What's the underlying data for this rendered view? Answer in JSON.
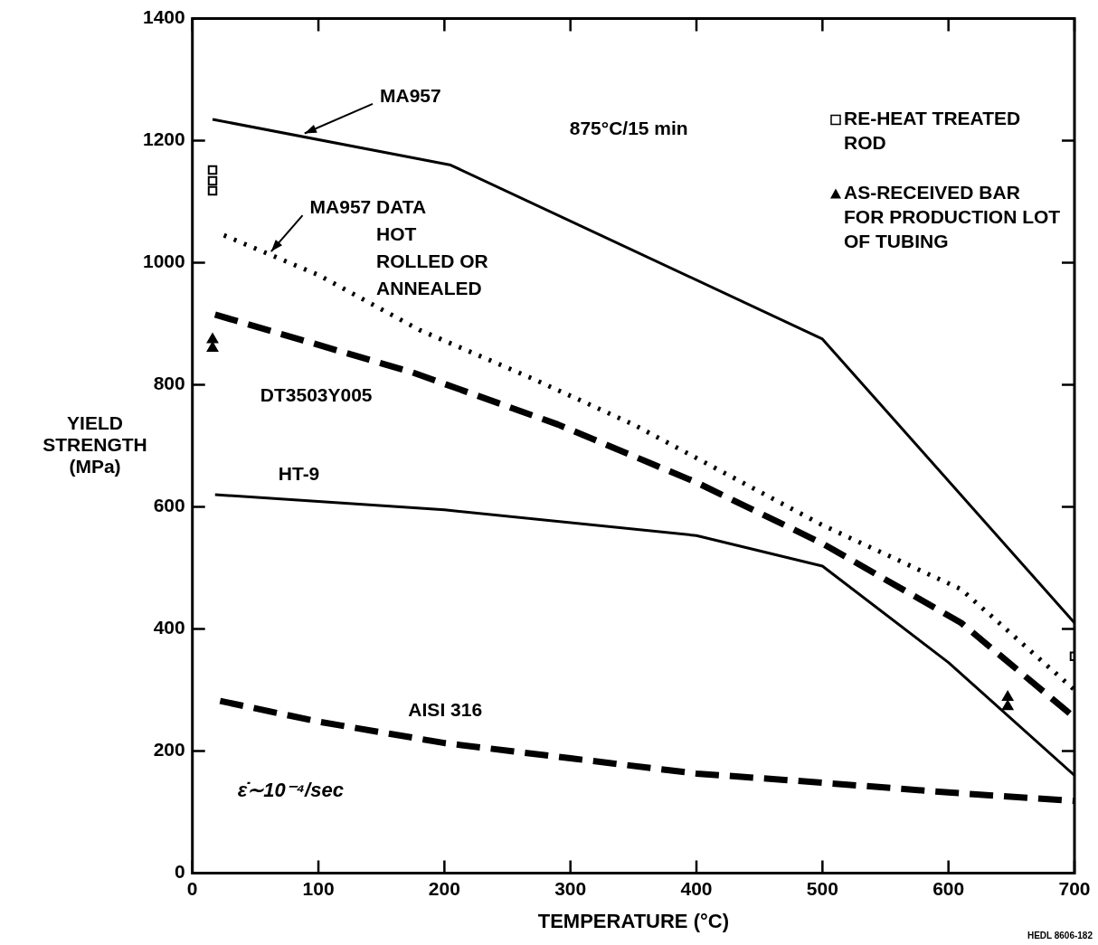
{
  "chart_data": {
    "type": "line",
    "xlabel": "TEMPERATURE (°C)",
    "ylabel": "YIELD STRENGTH (MPa)",
    "xlim": [
      0,
      700
    ],
    "xticks": [
      0,
      100,
      200,
      300,
      400,
      500,
      600,
      700
    ],
    "ylim": [
      0,
      1400
    ],
    "yticks": [
      0,
      200,
      400,
      600,
      800,
      1000,
      1200,
      1400
    ],
    "grid": false,
    "legend": "top right",
    "series": [
      {
        "name": "MA957",
        "color": "#000000",
        "line_style": "solid",
        "x": [
          16,
          205,
          500,
          700
        ],
        "values": [
          1235,
          1160,
          875,
          410
        ]
      },
      {
        "name": "MA957 DATA HOT ROLLED OR ANNEALED",
        "color": "#000000",
        "line_style": "dotted",
        "x": [
          25,
          100,
          180,
          270,
          350,
          500,
          610,
          700
        ],
        "values": [
          1045,
          980,
          890,
          810,
          735,
          570,
          465,
          300
        ]
      },
      {
        "name": "DT3503Y005",
        "color": "#000000",
        "line_style": "dashed",
        "x": [
          18,
          175,
          290,
          400,
          500,
          610,
          700
        ],
        "values": [
          915,
          820,
          735,
          640,
          540,
          410,
          255
        ]
      },
      {
        "name": "HT-9",
        "color": "#000000",
        "line_style": "solid",
        "x": [
          18,
          200,
          400,
          500,
          600,
          700
        ],
        "values": [
          620,
          595,
          553,
          503,
          345,
          160
        ]
      },
      {
        "name": "AISI 316",
        "color": "#000000",
        "line_style": "dashed",
        "x": [
          22,
          100,
          200,
          300,
          400,
          500,
          600,
          700
        ],
        "values": [
          282,
          248,
          213,
          188,
          163,
          148,
          132,
          118
        ]
      },
      {
        "name": "RE-HEAT TREATED ROD",
        "type": "scatter",
        "marker": "square",
        "color": "#000000",
        "x": [
          16,
          16,
          16,
          700
        ],
        "values": [
          1152,
          1134,
          1118,
          355
        ]
      },
      {
        "name": "AS-RECEIVED BAR FOR PRODUCTION LOT OF TUBING",
        "type": "scatter",
        "marker": "triangle",
        "color": "#000000",
        "x": [
          16,
          16,
          647,
          647
        ],
        "values": [
          874,
          860,
          288,
          273
        ]
      }
    ],
    "annotations": [
      "875°C/15 min",
      "ε̇∼10⁻⁴/sec",
      "HEDL 8606-182"
    ]
  }
}
